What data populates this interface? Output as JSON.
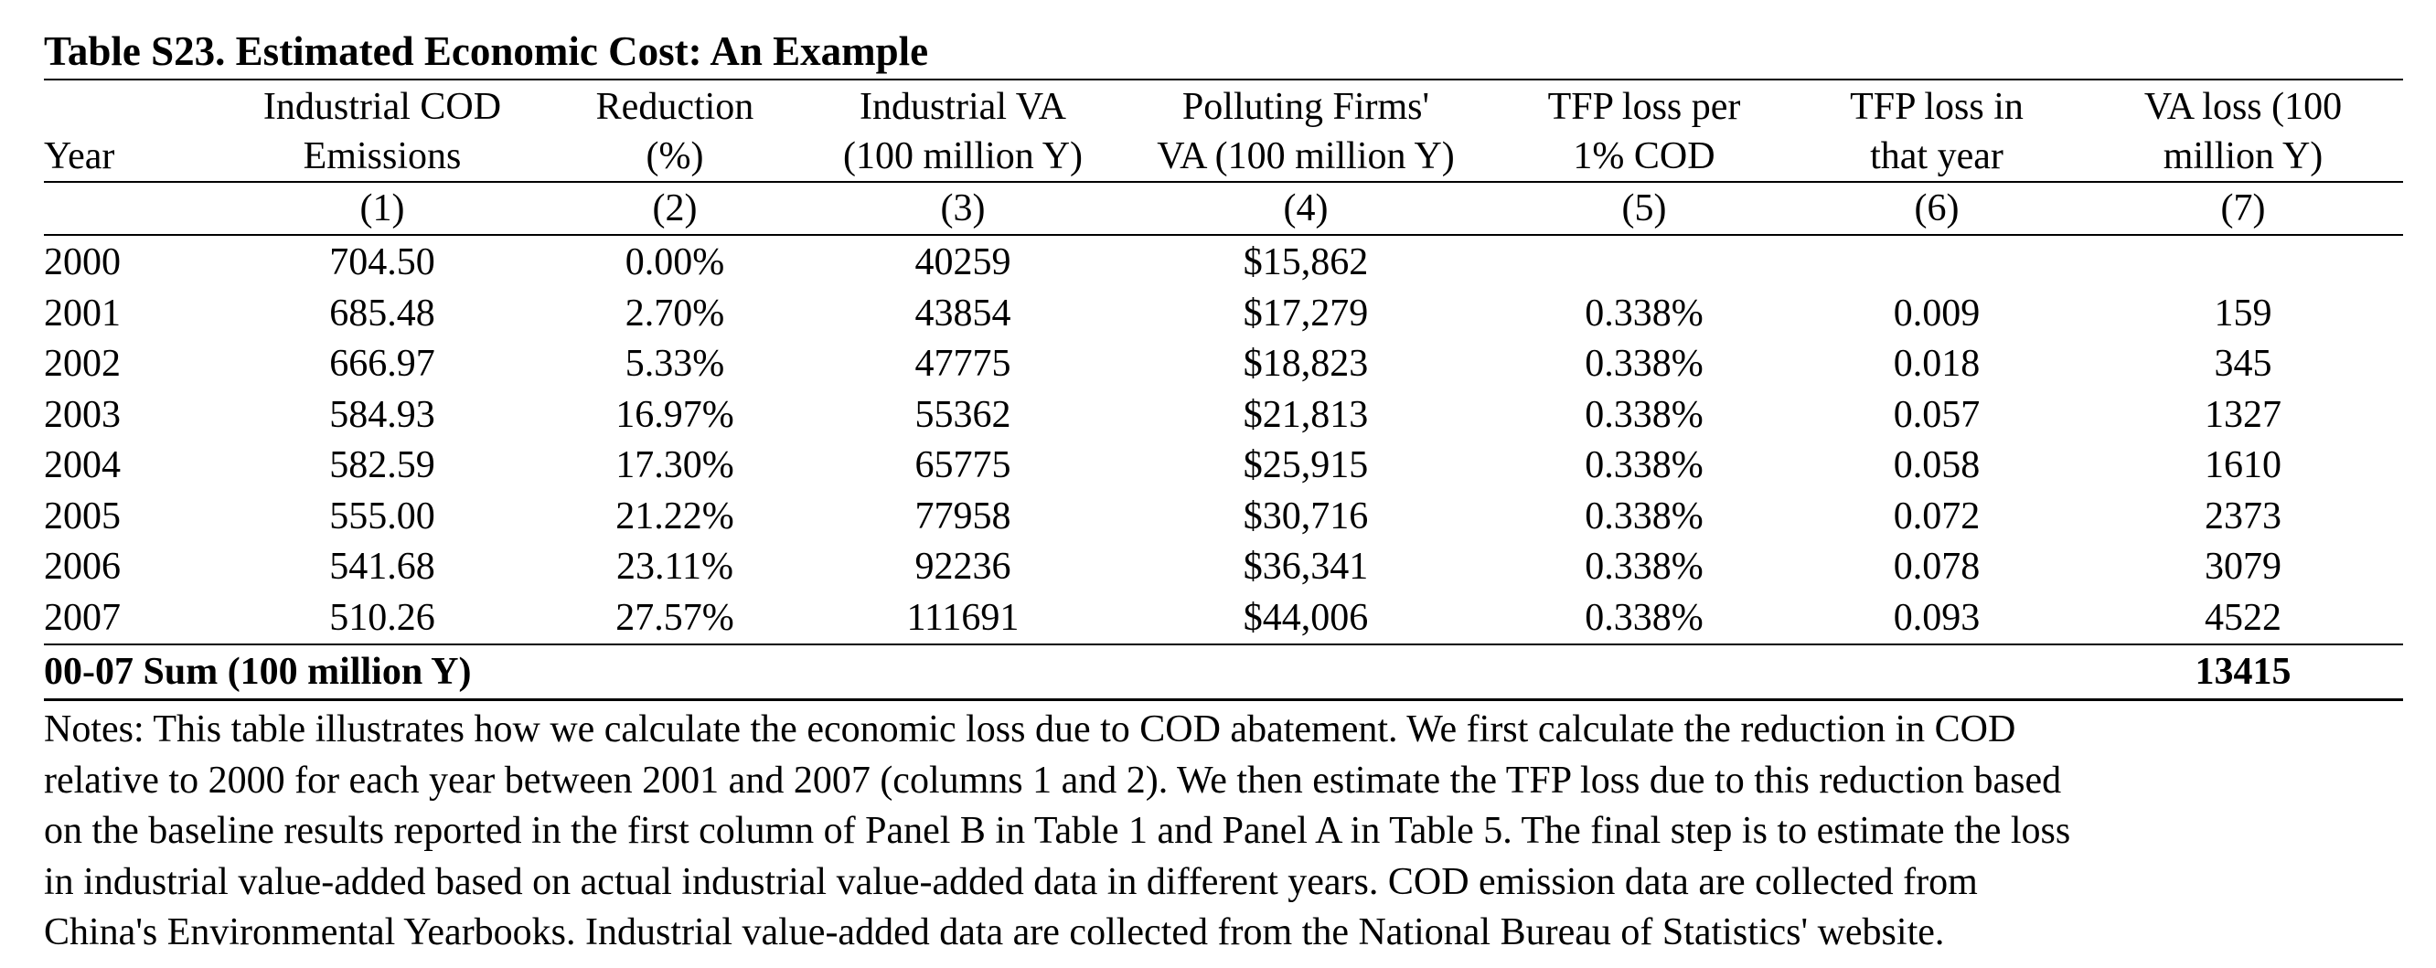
{
  "caption": "Table S23. Estimated Economic Cost: An Example",
  "headers": {
    "year": "Year",
    "col1": [
      "Industrial COD",
      "Emissions"
    ],
    "col2": [
      "Reduction",
      "(%)"
    ],
    "col3": [
      "Industrial VA",
      "(100 million Y)"
    ],
    "col4": [
      "Polluting Firms'",
      "VA (100 million Y)"
    ],
    "col5": [
      "TFP loss per",
      "1% COD"
    ],
    "col6": [
      "TFP loss in",
      "that year"
    ],
    "col7": [
      "VA loss (100",
      "million Y)"
    ]
  },
  "column_numbers": [
    "(1)",
    "(2)",
    "(3)",
    "(4)",
    "(5)",
    "(6)",
    "(7)"
  ],
  "rows": [
    {
      "year": "2000",
      "c1": "704.50",
      "c2": "0.00%",
      "c3": "40259",
      "c4": "$15,862",
      "c5": "",
      "c6": "",
      "c7": ""
    },
    {
      "year": "2001",
      "c1": "685.48",
      "c2": "2.70%",
      "c3": "43854",
      "c4": "$17,279",
      "c5": "0.338%",
      "c6": "0.009",
      "c7": "159"
    },
    {
      "year": "2002",
      "c1": "666.97",
      "c2": "5.33%",
      "c3": "47775",
      "c4": "$18,823",
      "c5": "0.338%",
      "c6": "0.018",
      "c7": "345"
    },
    {
      "year": "2003",
      "c1": "584.93",
      "c2": "16.97%",
      "c3": "55362",
      "c4": "$21,813",
      "c5": "0.338%",
      "c6": "0.057",
      "c7": "1327"
    },
    {
      "year": "2004",
      "c1": "582.59",
      "c2": "17.30%",
      "c3": "65775",
      "c4": "$25,915",
      "c5": "0.338%",
      "c6": "0.058",
      "c7": "1610"
    },
    {
      "year": "2005",
      "c1": "555.00",
      "c2": "21.22%",
      "c3": "77958",
      "c4": "$30,716",
      "c5": "0.338%",
      "c6": "0.072",
      "c7": "2373"
    },
    {
      "year": "2006",
      "c1": "541.68",
      "c2": "23.11%",
      "c3": "92236",
      "c4": "$36,341",
      "c5": "0.338%",
      "c6": "0.078",
      "c7": "3079"
    },
    {
      "year": "2007",
      "c1": "510.26",
      "c2": "27.57%",
      "c3": "111691",
      "c4": "$44,006",
      "c5": "0.338%",
      "c6": "0.093",
      "c7": "4522"
    }
  ],
  "sum": {
    "label": "00-07 Sum (100 million Y)",
    "value": "13415"
  },
  "notes": [
    "Notes: This table illustrates how we calculate the economic loss due to COD abatement. We first calculate the reduction in COD",
    "relative to 2000 for each year between 2001 and 2007 (columns 1 and 2). We then estimate the TFP loss due to this reduction based",
    "on the baseline results reported in the first column of Panel B in Table 1 and Panel A in Table 5. The final step is to estimate the loss",
    "in industrial value-added based on actual industrial value-added data in different years. COD emission data are collected from",
    "China's Environmental Yearbooks. Industrial value-added data are collected from the National Bureau of Statistics' website."
  ]
}
